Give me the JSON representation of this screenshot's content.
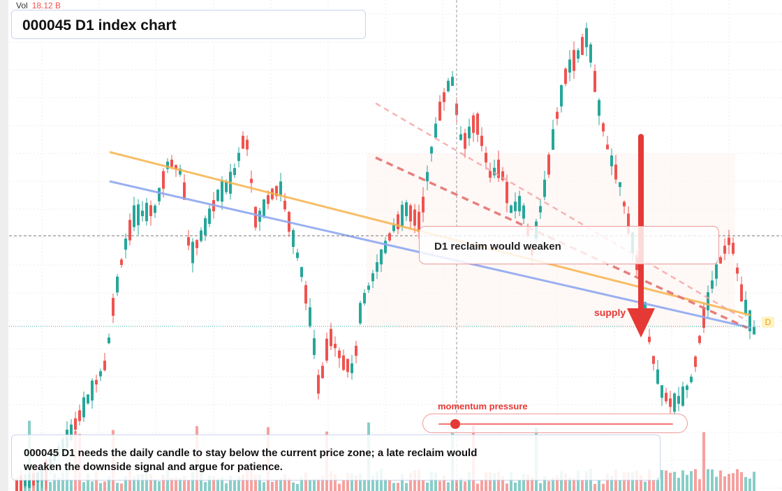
{
  "volume": {
    "label": "Vol",
    "value": "18.12 B"
  },
  "title": "000045 D1 index chart",
  "callout": {
    "text": "D1 reclaim would weaken"
  },
  "supply": {
    "label": "supply"
  },
  "badge": {
    "label": "D"
  },
  "momentum": {
    "label": "momentum pressure",
    "level": 0.07
  },
  "note": {
    "text": "000045 D1 needs the daily candle to stay below the current price zone; a late reclaim would weaken the downside signal and argue for patience."
  },
  "colors": {
    "up": "#26a69a",
    "down": "#ef5350",
    "resistance": "#f6b44e",
    "trendline": "#8fa8f0",
    "supply": "#e53935"
  }
}
